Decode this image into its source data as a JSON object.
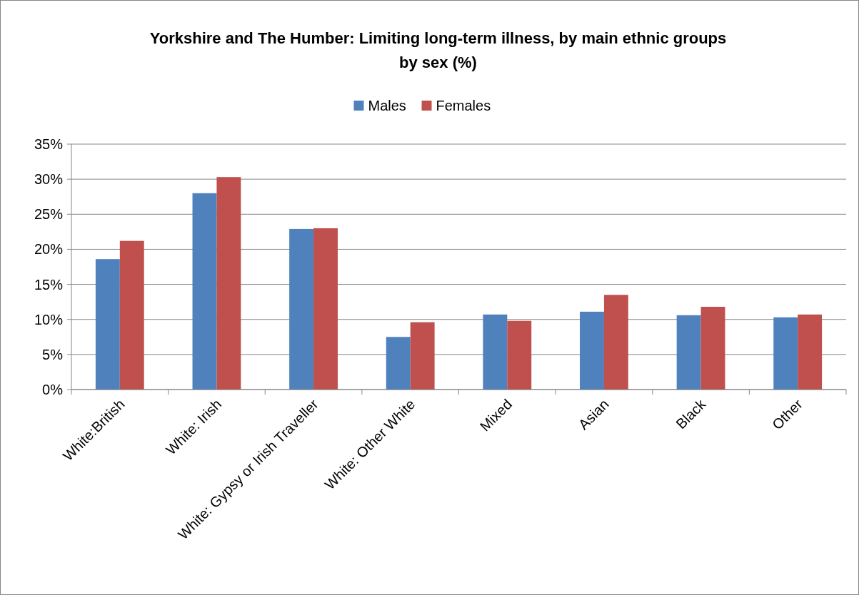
{
  "chart_data": {
    "type": "bar",
    "title": "Yorkshire and The Humber: Limiting long-term illness, by main ethnic groups\nby sex (%)",
    "categories": [
      "White:British",
      "White: Irish",
      "White: Gypsy or Irish Traveller",
      "White: Other White",
      "Mixed",
      "Asian",
      "Black",
      "Other"
    ],
    "series": [
      {
        "name": "Males",
        "color": "#4f81bd",
        "values": [
          18.6,
          28.0,
          22.9,
          7.5,
          10.7,
          11.1,
          10.6,
          10.3
        ]
      },
      {
        "name": "Females",
        "color": "#c0504d",
        "values": [
          21.2,
          30.3,
          23.0,
          9.6,
          9.8,
          13.5,
          11.8,
          10.7
        ]
      }
    ],
    "ylim": [
      0,
      35
    ],
    "yticks": [
      {
        "value": 0,
        "label": "0%"
      },
      {
        "value": 5,
        "label": "5%"
      },
      {
        "value": 10,
        "label": "10%"
      },
      {
        "value": 15,
        "label": "15%"
      },
      {
        "value": 20,
        "label": "20%"
      },
      {
        "value": 25,
        "label": "25%"
      },
      {
        "value": 30,
        "label": "30%"
      },
      {
        "value": 35,
        "label": "35%"
      }
    ],
    "grid": "y",
    "legend": "top"
  }
}
